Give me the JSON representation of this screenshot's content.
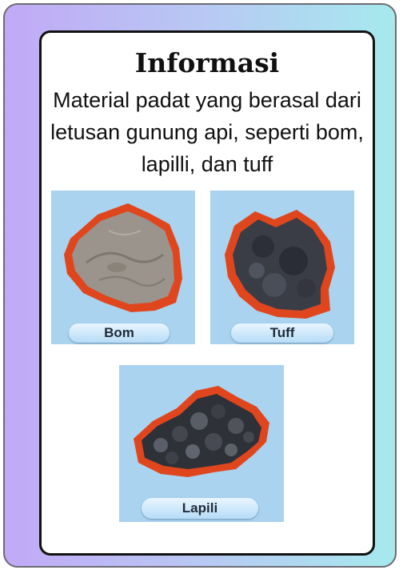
{
  "card": {
    "title": "Informasi",
    "description": "Material padat yang berasal dari letusan gunung api, seperti bom, lapilli, dan tuff"
  },
  "materials": [
    {
      "label": "Bom",
      "icon": "bomb-rock-photo"
    },
    {
      "label": "Tuff",
      "icon": "tuff-rock-photo"
    },
    {
      "label": "Lapili",
      "icon": "lapilli-rocks-photo"
    }
  ],
  "colors": {
    "outline": "#e0461e",
    "tile_background": "#a9d3ef",
    "frame_gradient_left": "#c1a9f6",
    "frame_gradient_right": "#a6e9ee"
  }
}
